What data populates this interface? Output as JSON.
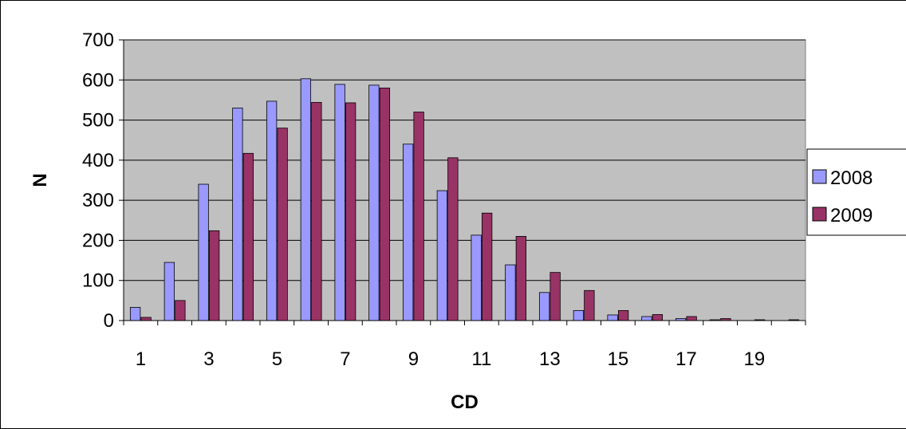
{
  "chart_data": {
    "type": "bar",
    "xlabel": "CD",
    "ylabel": "N",
    "ylim": [
      0,
      700
    ],
    "yticks": [
      0,
      100,
      200,
      300,
      400,
      500,
      600,
      700
    ],
    "categories": [
      "1",
      "2",
      "3",
      "4",
      "5",
      "6",
      "7",
      "8",
      "9",
      "10",
      "11",
      "12",
      "13",
      "14",
      "15",
      "16",
      "17",
      "18",
      "19",
      "20"
    ],
    "x_tick_labels": [
      "1",
      "",
      "3",
      "",
      "5",
      "",
      "7",
      "",
      "9",
      "",
      "11",
      "",
      "13",
      "",
      "15",
      "",
      "17",
      "",
      "19",
      ""
    ],
    "grid": true,
    "legend": "right",
    "plot_background": "#c0c0c0",
    "series": [
      {
        "name": "2008",
        "color": "#9999ff",
        "values": [
          33,
          145,
          340,
          530,
          547,
          603,
          589,
          587,
          440,
          324,
          213,
          139,
          70,
          25,
          14,
          10,
          5,
          2,
          0,
          0
        ]
      },
      {
        "name": "2009",
        "color": "#993366",
        "values": [
          8,
          50,
          224,
          417,
          480,
          544,
          543,
          580,
          520,
          406,
          268,
          210,
          120,
          75,
          25,
          15,
          10,
          5,
          2,
          2
        ]
      }
    ]
  }
}
